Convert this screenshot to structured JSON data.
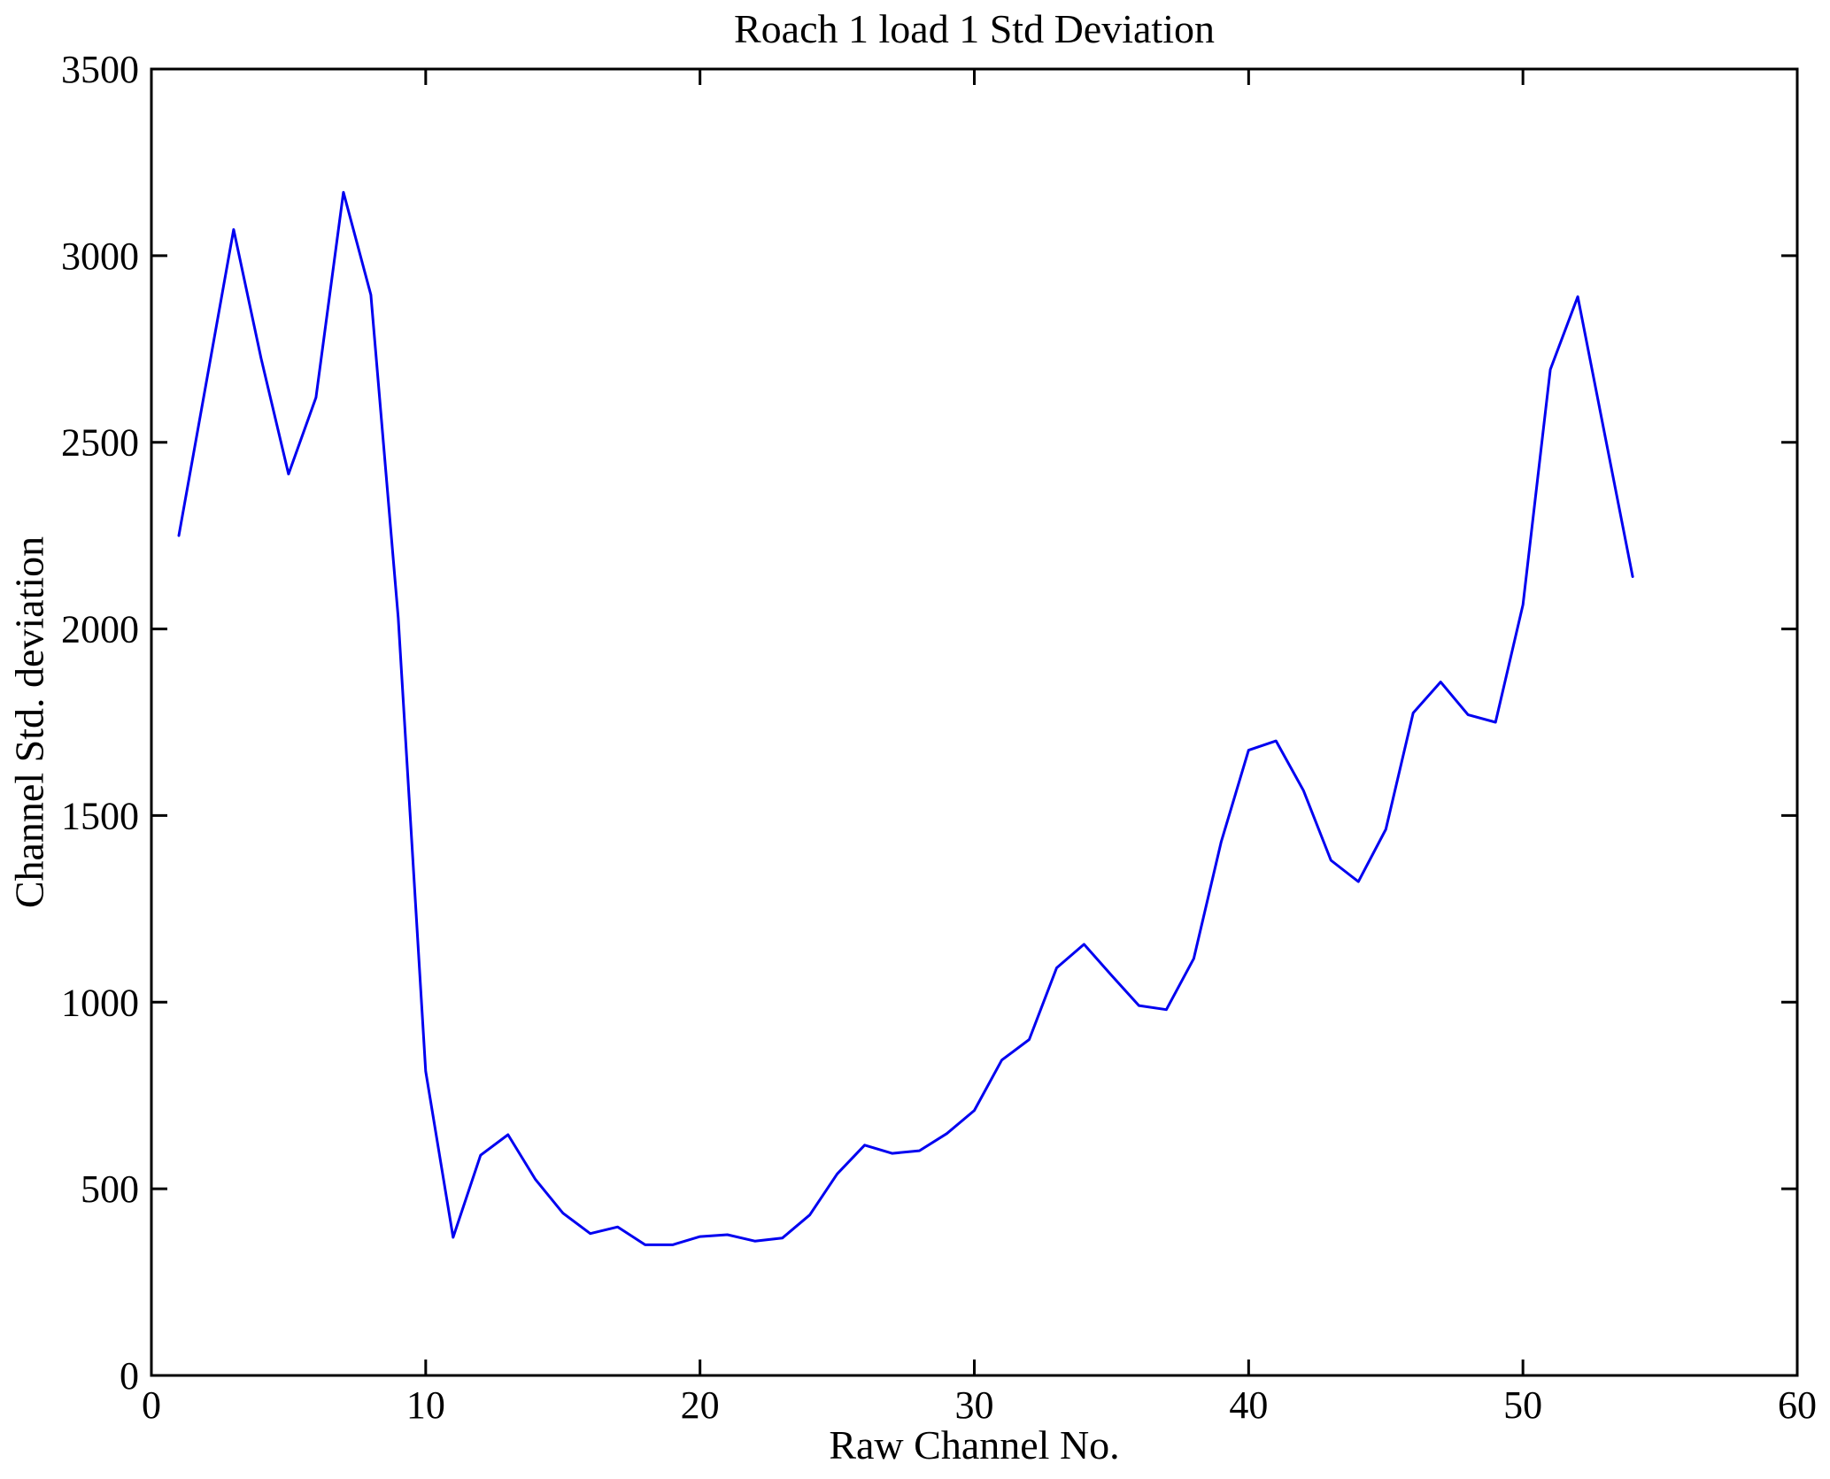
{
  "figure": {
    "title": "Roach 1 load 1 Std Deviation",
    "xlabel": "Raw Channel No.",
    "ylabel": "Channel Std. deviation"
  },
  "chart_data": {
    "type": "line",
    "title": "Roach 1 load 1 Std Deviation",
    "xlabel": "Raw Channel No.",
    "ylabel": "Channel Std. deviation",
    "xlim": [
      0,
      60
    ],
    "ylim": [
      0,
      3500
    ],
    "xticks": [
      0,
      10,
      20,
      30,
      40,
      50,
      60
    ],
    "yticks": [
      0,
      500,
      1000,
      1500,
      2000,
      2500,
      3000,
      3500
    ],
    "grid": false,
    "legend": "none",
    "line_color": "#0000f0",
    "axis_color": "#000000",
    "series": [
      {
        "name": "channel-std-deviation",
        "x": [
          1,
          2,
          3,
          4,
          5,
          6,
          7,
          8,
          9,
          10,
          11,
          12,
          13,
          14,
          15,
          16,
          17,
          18,
          19,
          20,
          21,
          22,
          23,
          24,
          25,
          26,
          27,
          28,
          29,
          30,
          31,
          32,
          33,
          34,
          35,
          36,
          37,
          38,
          39,
          40,
          41,
          42,
          43,
          44,
          45,
          46,
          47,
          48,
          49,
          50,
          51,
          52,
          53,
          54
        ],
        "values": [
          2250,
          2660,
          3070,
          2725,
          2415,
          2620,
          3170,
          2895,
          2030,
          815,
          370,
          590,
          645,
          525,
          435,
          380,
          398,
          350,
          350,
          372,
          377,
          360,
          368,
          430,
          540,
          617,
          595,
          602,
          648,
          710,
          845,
          900,
          1092,
          1155,
          1072,
          991,
          980,
          1117,
          1430,
          1675,
          1700,
          1567,
          1380,
          1323,
          1463,
          1775,
          1858,
          1770,
          1750,
          2065,
          2695,
          2890,
          2515,
          2140
        ]
      }
    ]
  }
}
